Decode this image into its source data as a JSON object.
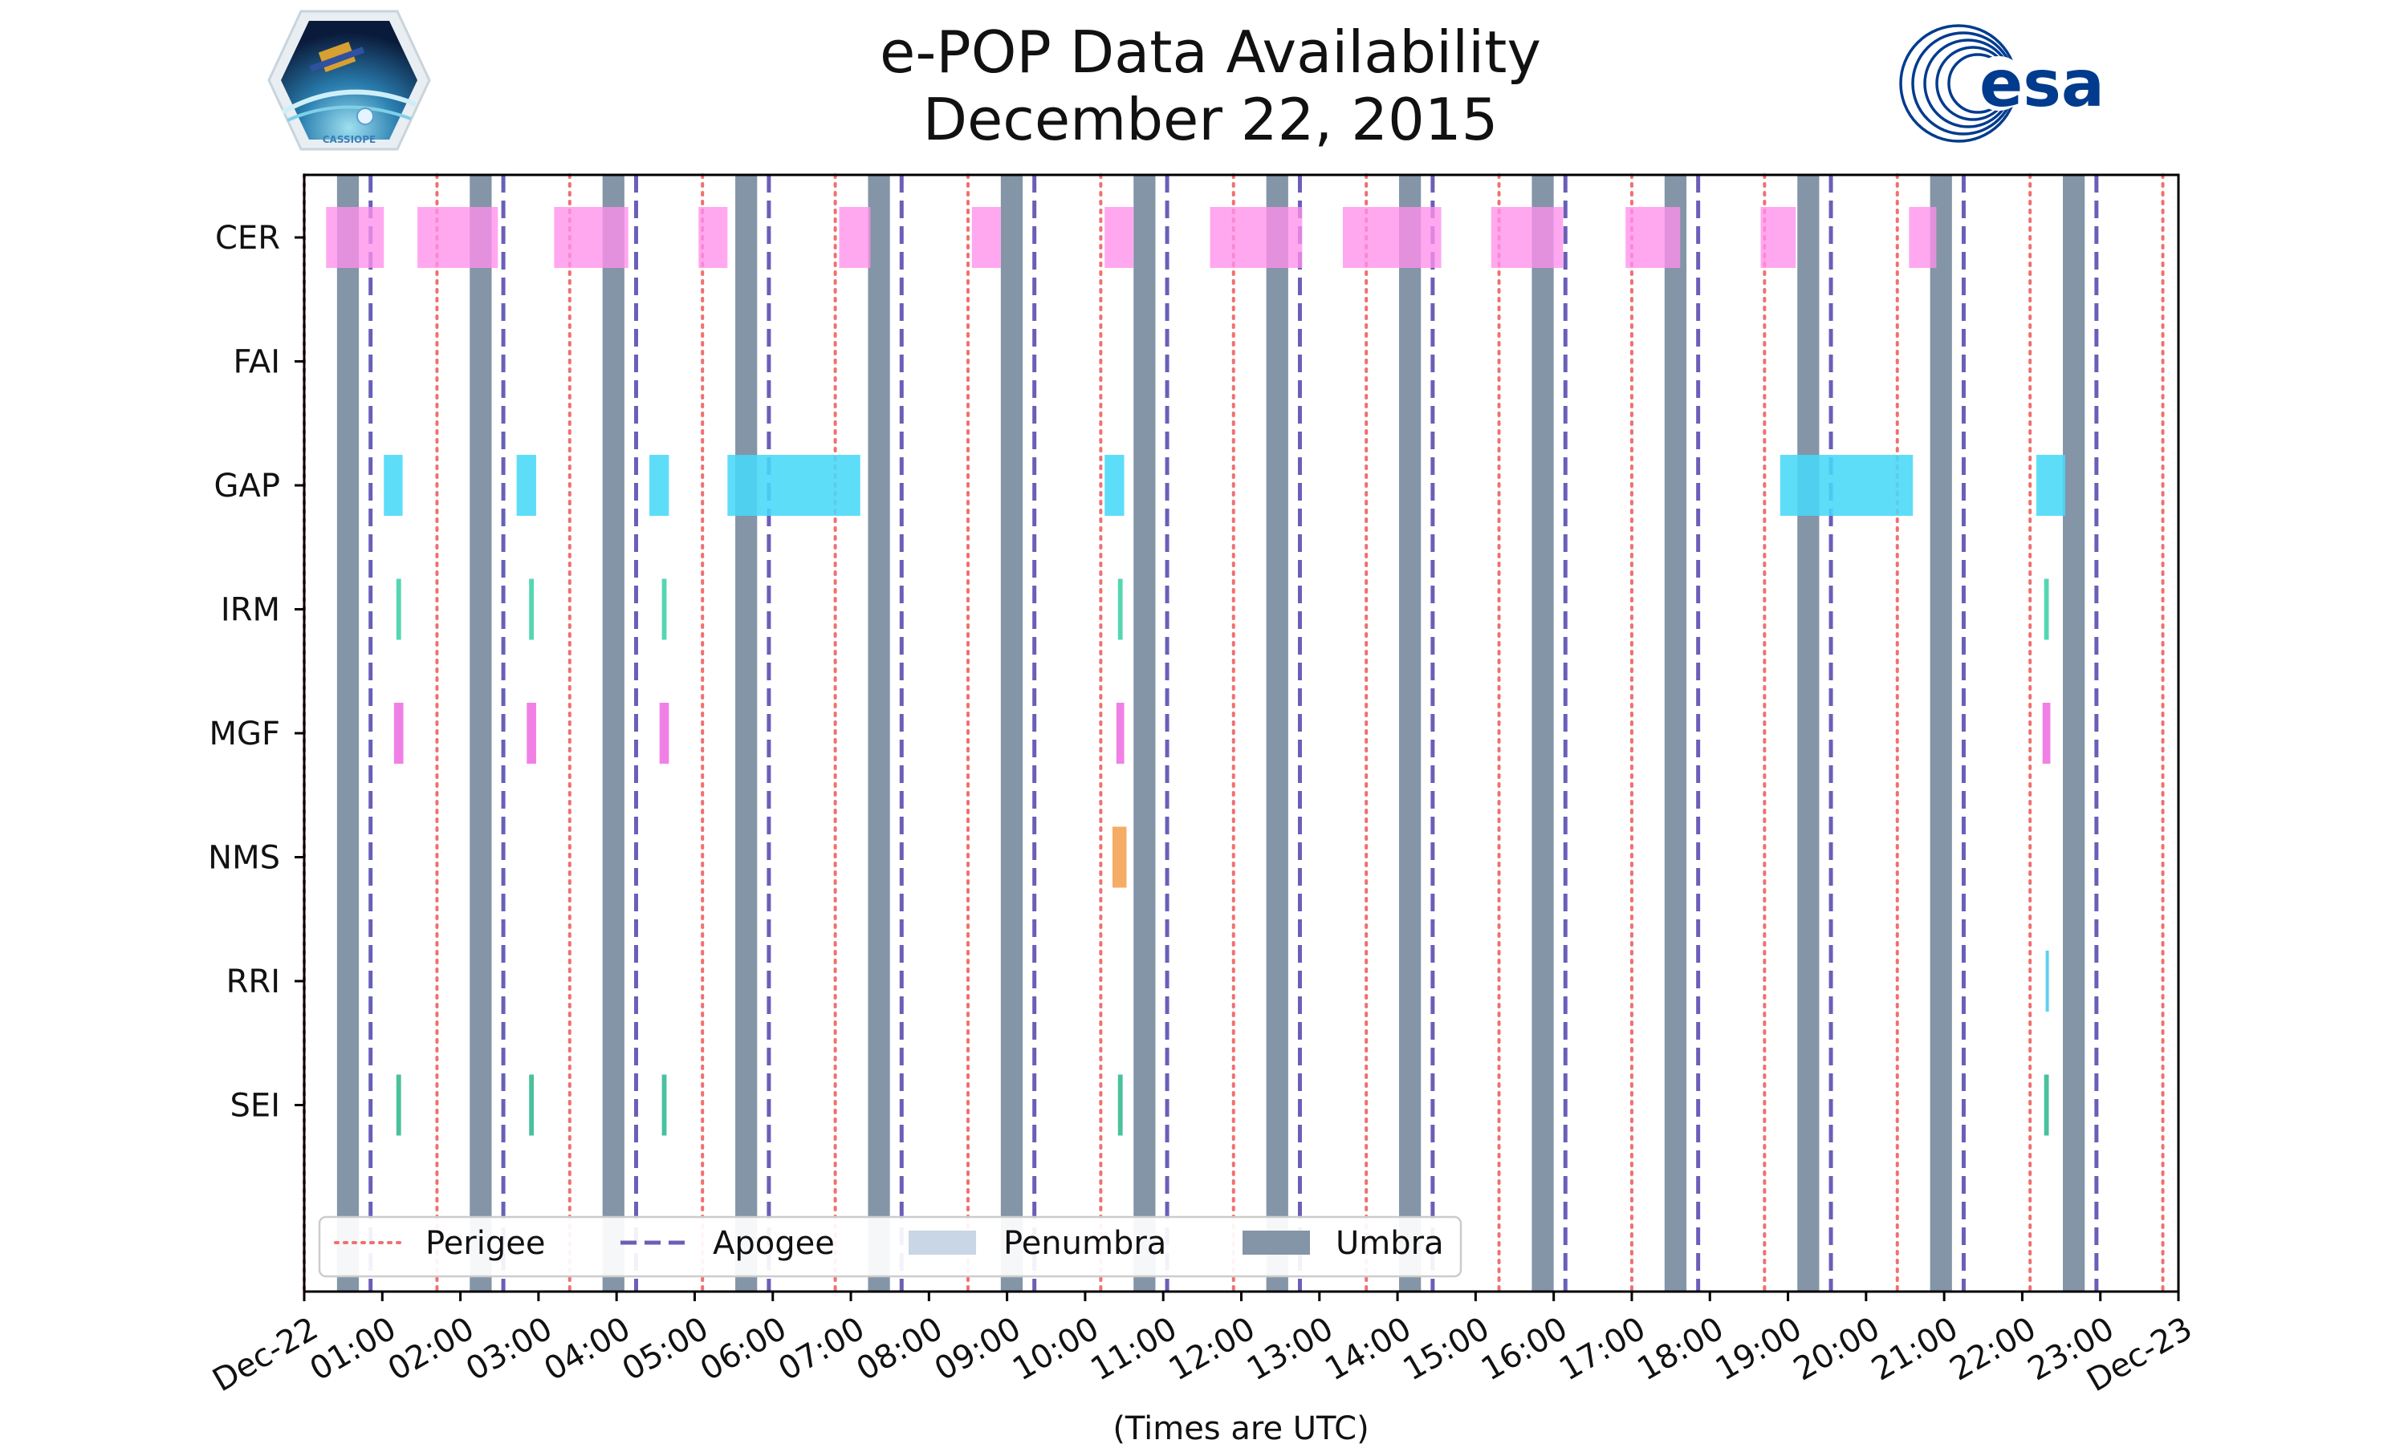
{
  "colors": {
    "perigee": "#f07070",
    "apogee": "#6a5fb8",
    "penumbra": "#c8d6e6",
    "umbra": "#8395a7",
    "CER": "#ff90ec",
    "GAP": "#48d8f8",
    "IRM": "#3ed0a8",
    "MGF": "#ee6ee2",
    "NMS": "#f4a050",
    "RRI": "#48c8f0",
    "SEI": "#30b890",
    "esa_blue": "#003b8e"
  },
  "logos": {
    "left_text": "CASSIOPE",
    "left_icon": "cassiope-satellite-icon",
    "right_text": "esa",
    "right_icon": "esa-swirl-icon"
  },
  "chart_data": {
    "type": "timeline",
    "title_line1": "e-POP Data Availability",
    "title_line2": "December 22, 2015",
    "xlabel": "(Times are UTC)",
    "x_unit": "hours since 2015-12-22 00:00 UTC",
    "xlim": [
      0,
      24
    ],
    "xtick_values": [
      0,
      1,
      2,
      3,
      4,
      5,
      6,
      7,
      8,
      9,
      10,
      11,
      12,
      13,
      14,
      15,
      16,
      17,
      18,
      19,
      20,
      21,
      22,
      23,
      24
    ],
    "xtick_labels": [
      "Dec-22",
      "01:00",
      "02:00",
      "03:00",
      "04:00",
      "05:00",
      "06:00",
      "07:00",
      "08:00",
      "09:00",
      "10:00",
      "11:00",
      "12:00",
      "13:00",
      "14:00",
      "15:00",
      "16:00",
      "17:00",
      "18:00",
      "19:00",
      "20:00",
      "21:00",
      "22:00",
      "23:00",
      "Dec-23"
    ],
    "instruments": [
      "CER",
      "FAI",
      "GAP",
      "IRM",
      "MGF",
      "NMS",
      "RRI",
      "SEI"
    ],
    "umbra": [
      [
        0.42,
        0.7
      ],
      [
        2.12,
        2.4
      ],
      [
        3.82,
        4.1
      ],
      [
        5.52,
        5.8
      ],
      [
        7.22,
        7.5
      ],
      [
        8.92,
        9.2
      ],
      [
        10.62,
        10.9
      ],
      [
        12.32,
        12.6
      ],
      [
        14.02,
        14.3
      ],
      [
        15.72,
        16.0
      ],
      [
        17.42,
        17.7
      ],
      [
        19.12,
        19.4
      ],
      [
        20.82,
        21.1
      ],
      [
        22.52,
        22.8
      ]
    ],
    "perigee": [
      0.0,
      1.7,
      3.4,
      5.1,
      6.8,
      8.5,
      10.2,
      11.9,
      13.6,
      15.3,
      17.0,
      18.7,
      20.4,
      22.1,
      23.8
    ],
    "apogee": [
      0.85,
      2.55,
      4.25,
      5.95,
      7.65,
      9.35,
      11.05,
      12.75,
      14.45,
      16.15,
      17.85,
      19.55,
      21.25,
      22.95
    ],
    "availability": {
      "CER": [
        [
          0.28,
          1.02
        ],
        [
          1.45,
          2.48
        ],
        [
          3.2,
          4.15
        ],
        [
          5.05,
          5.42
        ],
        [
          6.85,
          7.25
        ],
        [
          8.55,
          8.92
        ],
        [
          10.25,
          10.62
        ],
        [
          11.6,
          12.78
        ],
        [
          13.3,
          14.56
        ],
        [
          15.2,
          16.12
        ],
        [
          16.92,
          17.62
        ],
        [
          18.65,
          19.1
        ],
        [
          20.55,
          20.9
        ]
      ],
      "FAI": [],
      "GAP": [
        [
          1.02,
          1.26
        ],
        [
          2.72,
          2.97
        ],
        [
          4.42,
          4.67
        ],
        [
          5.42,
          7.12
        ],
        [
          10.25,
          10.5
        ],
        [
          18.9,
          20.6
        ],
        [
          22.18,
          22.55
        ]
      ],
      "IRM": [
        [
          1.18,
          1.24
        ],
        [
          2.88,
          2.94
        ],
        [
          4.58,
          4.64
        ],
        [
          10.42,
          10.48
        ],
        [
          22.28,
          22.34
        ]
      ],
      "MGF": [
        [
          1.15,
          1.27
        ],
        [
          2.85,
          2.97
        ],
        [
          4.55,
          4.67
        ],
        [
          10.4,
          10.5
        ],
        [
          22.26,
          22.36
        ]
      ],
      "NMS": [
        [
          10.35,
          10.53
        ]
      ],
      "RRI": [
        [
          22.3,
          22.34
        ]
      ],
      "SEI": [
        [
          1.18,
          1.24
        ],
        [
          2.88,
          2.94
        ],
        [
          4.58,
          4.64
        ],
        [
          10.42,
          10.48
        ],
        [
          22.28,
          22.34
        ]
      ]
    },
    "legend": {
      "position": "lower-left",
      "entries": [
        {
          "label": "Perigee",
          "style": "dotted"
        },
        {
          "label": "Apogee",
          "style": "dashed"
        },
        {
          "label": "Penumbra",
          "style": "patch-light"
        },
        {
          "label": "Umbra",
          "style": "patch-dark"
        }
      ]
    }
  }
}
